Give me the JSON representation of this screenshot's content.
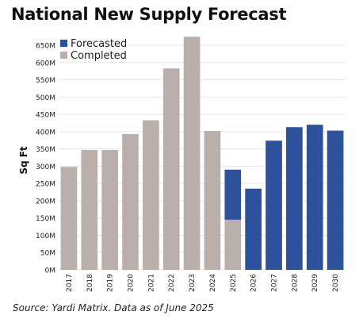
{
  "chart_data": {
    "type": "bar",
    "stacked": true,
    "title": "National New Supply Forecast",
    "ylabel": "Sq Ft",
    "xlabel": "",
    "categories": [
      "2017",
      "2018",
      "2019",
      "2020",
      "2021",
      "2022",
      "2023",
      "2024",
      "2025",
      "2026",
      "2027",
      "2028",
      "2029",
      "2030"
    ],
    "series": [
      {
        "name": "Completed",
        "color": "#b9b0ab",
        "values": [
          298,
          347,
          347,
          393,
          433,
          583,
          675,
          402,
          145,
          0,
          0,
          0,
          0,
          0
        ]
      },
      {
        "name": "Forecasted",
        "color": "#2e519b",
        "values": [
          0,
          0,
          0,
          0,
          0,
          0,
          0,
          0,
          145,
          235,
          374,
          413,
          420,
          403
        ]
      }
    ],
    "unit_suffix": "M",
    "ylim": [
      0,
      680
    ],
    "yticks": [
      0,
      50,
      100,
      150,
      200,
      250,
      300,
      350,
      400,
      450,
      500,
      550,
      600,
      650
    ],
    "ytick_labels": [
      "0M",
      "50M",
      "100M",
      "150M",
      "200M",
      "250M",
      "300M",
      "350M",
      "400M",
      "450M",
      "500M",
      "550M",
      "600M",
      "650M"
    ],
    "grid": true,
    "legend_position": "top-left",
    "legend": [
      {
        "label": "Forecasted",
        "color": "#2e519b"
      },
      {
        "label": "Completed",
        "color": "#b9b0ab"
      }
    ]
  },
  "source": "Source: Yardi Matrix. Data as of June 2025"
}
